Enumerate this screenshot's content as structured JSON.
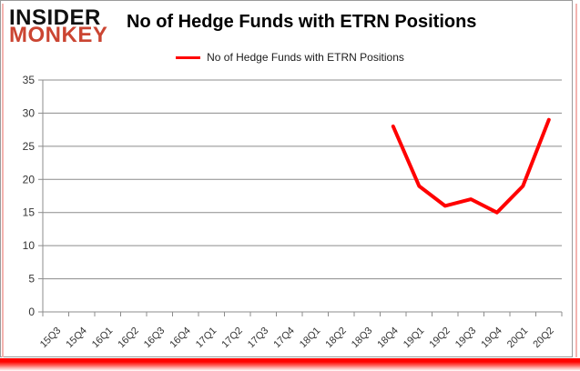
{
  "logo": {
    "line1": "INSIDER",
    "line2": "MONKEY",
    "color_line1": "#111111",
    "color_line2": "#cb4532"
  },
  "header": {
    "title": "No of Hedge Funds with ETRN Positions"
  },
  "legend": {
    "label": "No of Hedge Funds with ETRN Positions",
    "line_color": "#ff0000"
  },
  "chart_data": {
    "type": "line",
    "title": "No of Hedge Funds with ETRN Positions",
    "categories": [
      "15Q3",
      "15Q4",
      "16Q1",
      "16Q2",
      "16Q3",
      "16Q4",
      "17Q1",
      "17Q2",
      "17Q3",
      "17Q4",
      "18Q1",
      "18Q2",
      "18Q3",
      "18Q4",
      "19Q1",
      "19Q2",
      "19Q3",
      "19Q4",
      "20Q1",
      "20Q2"
    ],
    "series": [
      {
        "name": "No of Hedge Funds with ETRN Positions",
        "color": "#ff0000",
        "values": [
          null,
          null,
          null,
          null,
          null,
          null,
          null,
          null,
          null,
          null,
          null,
          null,
          null,
          28,
          19,
          16,
          17,
          15,
          19,
          29
        ]
      }
    ],
    "ylim": [
      0,
      35
    ],
    "yticks": [
      0,
      5,
      10,
      15,
      20,
      25,
      30,
      35
    ],
    "xlabel": "",
    "ylabel": "",
    "grid": "horizontal",
    "gridline_color": "#8c8c8c",
    "axis_color": "#8c8c8c",
    "tick_label_color": "#333333",
    "legend_position": "top-center"
  },
  "frame": {
    "border_color": "#9a9a9a",
    "glow_color": "#f3b4b0",
    "bottom_bar_color": "#ff0400"
  }
}
